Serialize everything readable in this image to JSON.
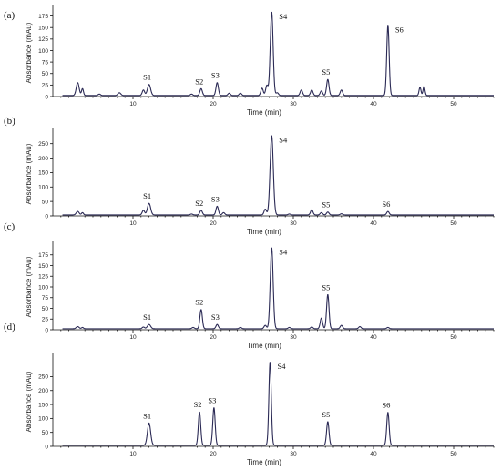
{
  "chart_data": [
    {
      "panel": "(a)",
      "type": "line",
      "xlabel": "Time (min)",
      "ylabel": "Absorbance (mAu)",
      "xlim": [
        0,
        55
      ],
      "ylim": [
        0,
        190
      ],
      "xticks": [
        10,
        20,
        30,
        40,
        50
      ],
      "yticks": [
        0,
        25,
        50,
        75,
        100,
        125,
        150,
        175
      ],
      "peaks": [
        {
          "t": 3.1,
          "h": 28,
          "w": 0.18
        },
        {
          "t": 3.7,
          "h": 15,
          "w": 0.12
        },
        {
          "t": 5.8,
          "h": 3,
          "w": 0.15
        },
        {
          "t": 8.3,
          "h": 6,
          "w": 0.18
        },
        {
          "t": 11.3,
          "h": 12,
          "w": 0.15
        },
        {
          "t": 12.0,
          "h": 24,
          "w": 0.2
        },
        {
          "t": 17.3,
          "h": 3,
          "w": 0.15
        },
        {
          "t": 18.5,
          "h": 15,
          "w": 0.15
        },
        {
          "t": 20.5,
          "h": 28,
          "w": 0.15
        },
        {
          "t": 22.0,
          "h": 5,
          "w": 0.15
        },
        {
          "t": 23.4,
          "h": 5,
          "w": 0.15
        },
        {
          "t": 26.1,
          "h": 16,
          "w": 0.15
        },
        {
          "t": 26.7,
          "h": 22,
          "w": 0.15
        },
        {
          "t": 27.3,
          "h": 182,
          "w": 0.18
        },
        {
          "t": 28.0,
          "h": 6,
          "w": 0.15
        },
        {
          "t": 31.0,
          "h": 12,
          "w": 0.15
        },
        {
          "t": 32.3,
          "h": 12,
          "w": 0.15
        },
        {
          "t": 33.5,
          "h": 10,
          "w": 0.15
        },
        {
          "t": 34.3,
          "h": 35,
          "w": 0.15
        },
        {
          "t": 36.0,
          "h": 12,
          "w": 0.15
        },
        {
          "t": 41.8,
          "h": 153,
          "w": 0.15
        },
        {
          "t": 45.8,
          "h": 18,
          "w": 0.12
        },
        {
          "t": 46.3,
          "h": 20,
          "w": 0.12
        }
      ],
      "peak_labels": [
        {
          "text": "S1",
          "t": 12.0,
          "h": 24
        },
        {
          "text": "S2",
          "t": 18.5,
          "h": 15
        },
        {
          "text": "S3",
          "t": 20.5,
          "h": 28
        },
        {
          "text": "S4",
          "t": 27.3,
          "h": 182
        },
        {
          "text": "S5",
          "t": 34.3,
          "h": 35
        },
        {
          "text": "S6",
          "t": 41.8,
          "h": 153
        }
      ]
    },
    {
      "panel": "(b)",
      "type": "line",
      "xlabel": "Time (min)",
      "ylabel": "Absorbance (mAu)",
      "xlim": [
        0,
        55
      ],
      "ylim": [
        0,
        290
      ],
      "xticks": [
        10,
        20,
        30,
        40,
        50
      ],
      "yticks": [
        0,
        50,
        100,
        150,
        200,
        250
      ],
      "peaks": [
        {
          "t": 3.1,
          "h": 12,
          "w": 0.18
        },
        {
          "t": 3.7,
          "h": 8,
          "w": 0.12
        },
        {
          "t": 11.3,
          "h": 16,
          "w": 0.15
        },
        {
          "t": 12.0,
          "h": 40,
          "w": 0.2
        },
        {
          "t": 17.3,
          "h": 3,
          "w": 0.15
        },
        {
          "t": 18.5,
          "h": 16,
          "w": 0.15
        },
        {
          "t": 20.5,
          "h": 30,
          "w": 0.15
        },
        {
          "t": 21.3,
          "h": 8,
          "w": 0.15
        },
        {
          "t": 26.5,
          "h": 20,
          "w": 0.15
        },
        {
          "t": 27.3,
          "h": 275,
          "w": 0.2
        },
        {
          "t": 29.5,
          "h": 3,
          "w": 0.15
        },
        {
          "t": 32.3,
          "h": 18,
          "w": 0.15
        },
        {
          "t": 33.5,
          "h": 8,
          "w": 0.15
        },
        {
          "t": 34.3,
          "h": 10,
          "w": 0.15
        },
        {
          "t": 36.0,
          "h": 4,
          "w": 0.15
        },
        {
          "t": 41.8,
          "h": 12,
          "w": 0.15
        }
      ],
      "peak_labels": [
        {
          "text": "S1",
          "t": 12.0,
          "h": 40
        },
        {
          "text": "S2",
          "t": 18.5,
          "h": 16
        },
        {
          "text": "S3",
          "t": 20.5,
          "h": 30
        },
        {
          "text": "S4",
          "t": 27.3,
          "h": 275
        },
        {
          "text": "S5",
          "t": 34.3,
          "h": 10
        },
        {
          "text": "S6",
          "t": 41.8,
          "h": 12
        }
      ]
    },
    {
      "panel": "(c)",
      "type": "line",
      "xlabel": "Time (min)",
      "ylabel": "Absorbance (mAu)",
      "xlim": [
        0,
        55
      ],
      "ylim": [
        0,
        200
      ],
      "xticks": [
        10,
        20,
        30,
        40,
        50
      ],
      "yticks": [
        0,
        25,
        50,
        75,
        100,
        125,
        150,
        175
      ],
      "peaks": [
        {
          "t": 3.1,
          "h": 5,
          "w": 0.18
        },
        {
          "t": 3.7,
          "h": 3,
          "w": 0.12
        },
        {
          "t": 11.3,
          "h": 4,
          "w": 0.15
        },
        {
          "t": 12.0,
          "h": 10,
          "w": 0.2
        },
        {
          "t": 17.5,
          "h": 3,
          "w": 0.15
        },
        {
          "t": 18.5,
          "h": 45,
          "w": 0.15
        },
        {
          "t": 20.5,
          "h": 10,
          "w": 0.15
        },
        {
          "t": 23.4,
          "h": 3,
          "w": 0.15
        },
        {
          "t": 26.5,
          "h": 8,
          "w": 0.15
        },
        {
          "t": 27.3,
          "h": 190,
          "w": 0.18
        },
        {
          "t": 29.5,
          "h": 3,
          "w": 0.15
        },
        {
          "t": 32.3,
          "h": 4,
          "w": 0.15
        },
        {
          "t": 33.5,
          "h": 25,
          "w": 0.15
        },
        {
          "t": 34.3,
          "h": 80,
          "w": 0.15
        },
        {
          "t": 36.0,
          "h": 8,
          "w": 0.15
        },
        {
          "t": 38.3,
          "h": 5,
          "w": 0.15
        },
        {
          "t": 41.8,
          "h": 3,
          "w": 0.15
        }
      ],
      "peak_labels": [
        {
          "text": "S1",
          "t": 12.0,
          "h": 10
        },
        {
          "text": "S2",
          "t": 18.5,
          "h": 45
        },
        {
          "text": "S3",
          "t": 20.5,
          "h": 10
        },
        {
          "text": "S4",
          "t": 27.3,
          "h": 190
        },
        {
          "text": "S5",
          "t": 34.3,
          "h": 80
        }
      ]
    },
    {
      "panel": "(d)",
      "type": "line",
      "xlabel": "Time (min)",
      "ylabel": "Absorbance (mAu)",
      "xlim": [
        0,
        55
      ],
      "ylim": [
        0,
        320
      ],
      "xticks": [
        10,
        20,
        30,
        40,
        50
      ],
      "yticks": [
        0,
        50,
        100,
        150,
        200,
        250
      ],
      "peaks": [
        {
          "t": 12.0,
          "h": 80,
          "w": 0.2
        },
        {
          "t": 18.3,
          "h": 120,
          "w": 0.15
        },
        {
          "t": 20.1,
          "h": 135,
          "w": 0.15
        },
        {
          "t": 27.1,
          "h": 300,
          "w": 0.15
        },
        {
          "t": 34.3,
          "h": 85,
          "w": 0.15
        },
        {
          "t": 41.8,
          "h": 118,
          "w": 0.15
        }
      ],
      "peak_labels": [
        {
          "text": "S1",
          "t": 12.0,
          "h": 80
        },
        {
          "text": "S2",
          "t": 18.3,
          "h": 120
        },
        {
          "text": "S3",
          "t": 20.1,
          "h": 135
        },
        {
          "text": "S4",
          "t": 27.1,
          "h": 300
        },
        {
          "text": "S5",
          "t": 34.3,
          "h": 85
        },
        {
          "text": "S6",
          "t": 41.8,
          "h": 118
        }
      ]
    }
  ]
}
